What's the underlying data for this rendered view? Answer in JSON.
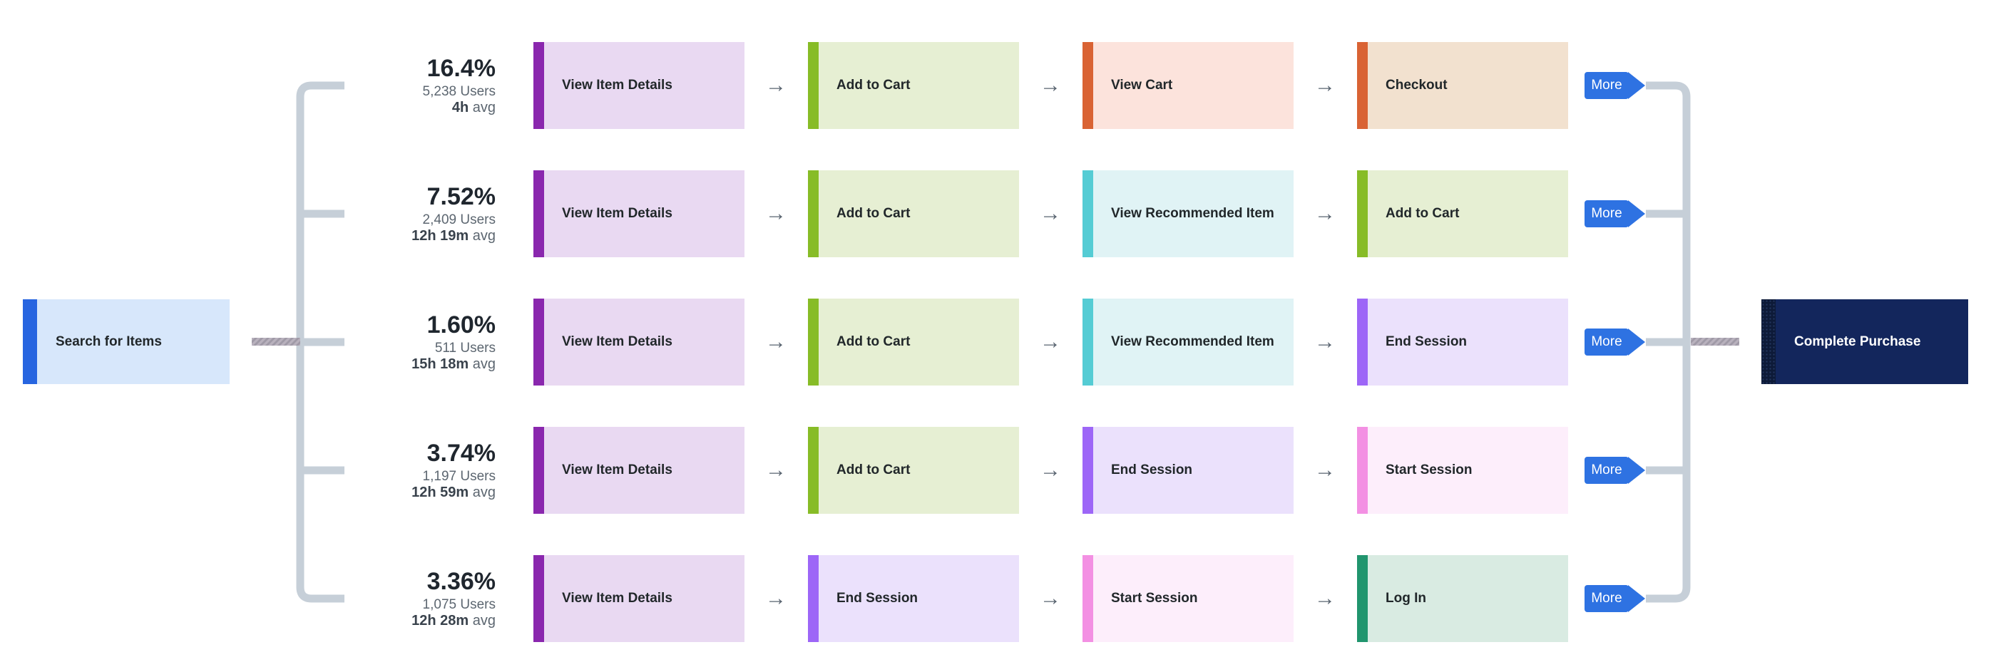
{
  "diagram": {
    "start_node": {
      "label": "Search for Items"
    },
    "end_node": {
      "label": "Complete Purchase"
    },
    "more_label": "More",
    "avg_suffix": "avg",
    "arrow_glyph": "→"
  },
  "node_colors": {
    "start_accent": "#2765e0",
    "start_bg": "#d7e7fb",
    "end_accent": "#0d1a38",
    "end_bg": "#13265c",
    "more_badge": "#2e72e2",
    "connector": "#c6cfd8",
    "dashed_connector": "#a9a2ae",
    "arrow": "#596470"
  },
  "event_colors": {
    "View Item Details": {
      "accent": "#8a27ae",
      "bg": "#e9d9f2"
    },
    "Add to Cart": {
      "accent": "#87bc27",
      "bg": "#e6efd3"
    },
    "View Cart": {
      "accent": "#d96334",
      "bg": "#fce3dc"
    },
    "Checkout": {
      "accent": "#d96334",
      "bg": "#f2e1cf"
    },
    "View Recommended Item": {
      "accent": "#55ccd4",
      "bg": "#e0f3f5"
    },
    "End Session": {
      "accent": "#9d66f7",
      "bg": "#ebe1fc"
    },
    "Start Session": {
      "accent": "#f390e3",
      "bg": "#fdeefb"
    },
    "Log In": {
      "accent": "#21956e",
      "bg": "#d9ebe2"
    }
  },
  "paths": [
    {
      "conversion": "16.4%",
      "users": "5,238 Users",
      "avg_time": "4h",
      "steps": [
        "View Item Details",
        "Add to Cart",
        "View Cart",
        "Checkout"
      ]
    },
    {
      "conversion": "7.52%",
      "users": "2,409 Users",
      "avg_time": "12h 19m",
      "steps": [
        "View Item Details",
        "Add to Cart",
        "View Recommended Item",
        "Add to Cart"
      ]
    },
    {
      "conversion": "1.60%",
      "users": "511 Users",
      "avg_time": "15h 18m",
      "steps": [
        "View Item Details",
        "Add to Cart",
        "View Recommended Item",
        "End Session"
      ]
    },
    {
      "conversion": "3.74%",
      "users": "1,197 Users",
      "avg_time": "12h 59m",
      "steps": [
        "View Item Details",
        "Add to Cart",
        "End Session",
        "Start Session"
      ]
    },
    {
      "conversion": "3.36%",
      "users": "1,075 Users",
      "avg_time": "12h 28m",
      "steps": [
        "View Item Details",
        "End Session",
        "Start Session",
        "Log In"
      ]
    }
  ]
}
